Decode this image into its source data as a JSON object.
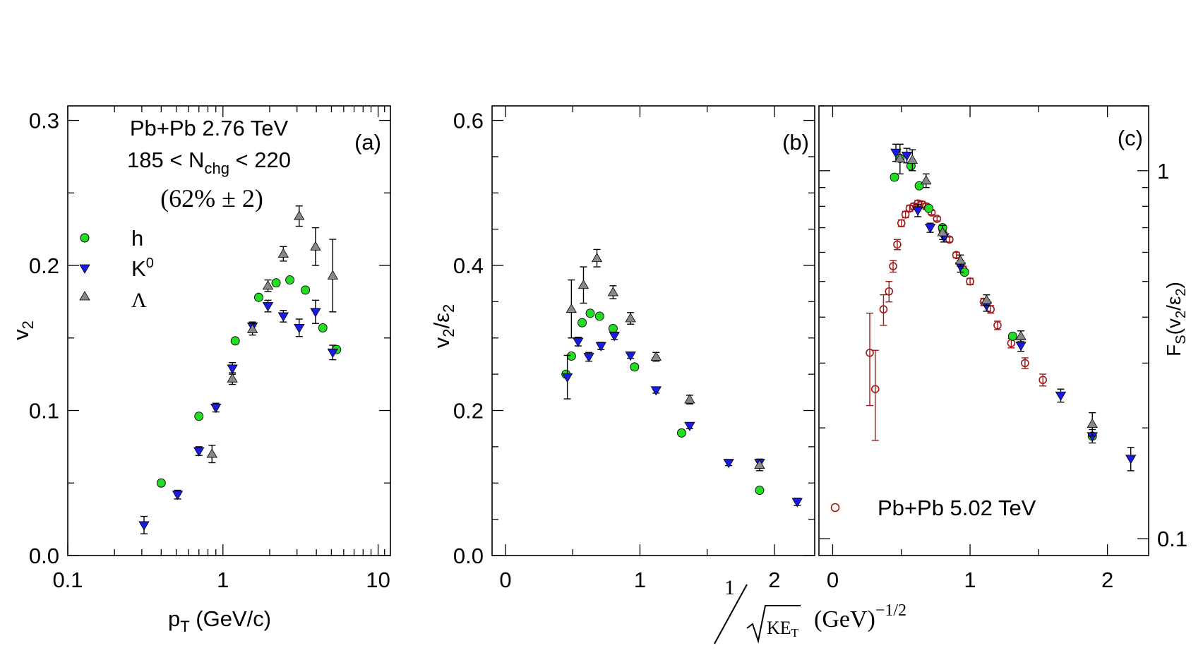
{
  "chart_data": [
    {
      "type": "scatter",
      "panel_tag": "(a)",
      "xscale": "log",
      "xlim": [
        0.1,
        12
      ],
      "ylim": [
        0.0,
        0.31
      ],
      "xticks": [
        "0.1",
        "1",
        "10"
      ],
      "yticks": [
        "0.0",
        "0.1",
        "0.2",
        "0.3"
      ],
      "xlabel": {
        "main": "p",
        "sub": "T",
        "rest": " (GeV/c)"
      },
      "ylabel": {
        "main": "v",
        "sub": "2"
      },
      "annotation": {
        "line1": "Pb+Pb  2.76 TeV",
        "line2_pre": "185 < N",
        "line2_sub": "chg",
        "line2_post": " < 220",
        "line3": "(62% ± 2)"
      },
      "legend": [
        {
          "name": "h",
          "marker": "circle",
          "color": "#22dd22"
        },
        {
          "name": "K",
          "sup": "0",
          "marker": "triangle-down",
          "color": "#1a1ae6"
        },
        {
          "name": "Λ",
          "marker": "triangle-up",
          "color": "#888888"
        }
      ],
      "series": [
        {
          "name": "h",
          "marker": "circle",
          "color": "#22dd22",
          "x": [
            0.4,
            0.7,
            1.2,
            1.7,
            2.2,
            2.7,
            3.4,
            4.4,
            5.4
          ],
          "y": [
            0.05,
            0.096,
            0.148,
            0.178,
            0.188,
            0.19,
            0.183,
            0.157,
            0.142
          ],
          "err": [
            0,
            0,
            0,
            0,
            0,
            0,
            0,
            0,
            0
          ]
        },
        {
          "name": "K0",
          "marker": "triangle-down",
          "color": "#1a1ae6",
          "x": [
            0.31,
            0.51,
            0.7,
            0.9,
            1.15,
            1.55,
            1.95,
            2.45,
            3.1,
            3.95,
            5.1
          ],
          "y": [
            0.021,
            0.042,
            0.072,
            0.102,
            0.129,
            0.158,
            0.172,
            0.165,
            0.157,
            0.168,
            0.14
          ],
          "err": [
            0.006,
            0.003,
            0.003,
            0.003,
            0.004,
            0.003,
            0.004,
            0.004,
            0.006,
            0.008,
            0.005
          ]
        },
        {
          "name": "Lambda",
          "marker": "triangle-up",
          "color": "#888888",
          "x": [
            0.85,
            1.15,
            1.55,
            1.95,
            2.45,
            3.1,
            3.95,
            5.1
          ],
          "y": [
            0.07,
            0.122,
            0.156,
            0.186,
            0.208,
            0.234,
            0.213,
            0.193
          ],
          "err": [
            0.006,
            0.004,
            0.004,
            0.004,
            0.005,
            0.007,
            0.013,
            0.025
          ]
        }
      ]
    },
    {
      "type": "scatter",
      "panel_tag": "(b)",
      "xlim": [
        -0.1,
        2.3
      ],
      "ylim": [
        0.0,
        0.62
      ],
      "xticks": [
        0,
        1,
        2
      ],
      "xtick_labels": [
        "0",
        "1",
        "2"
      ],
      "yticks": [
        "0.0",
        "0.2",
        "0.4",
        "0.6"
      ],
      "ylabel": {
        "main": "v",
        "sub1": "2",
        "sep": "/ε",
        "sub2": "2"
      },
      "series": [
        {
          "name": "h",
          "marker": "circle",
          "color": "#22dd22",
          "x": [
            0.45,
            0.49,
            0.57,
            0.63,
            0.7,
            0.8,
            0.96,
            1.31,
            1.89
          ],
          "y": [
            0.25,
            0.275,
            0.321,
            0.334,
            0.33,
            0.313,
            0.26,
            0.169,
            0.09
          ],
          "err": [
            0,
            0,
            0,
            0,
            0,
            0,
            0,
            0,
            0
          ]
        },
        {
          "name": "K0",
          "marker": "triangle-down",
          "color": "#1a1ae6",
          "x": [
            0.46,
            0.54,
            0.62,
            0.71,
            0.81,
            0.93,
            1.12,
            1.37,
            1.66,
            1.89,
            2.17
          ],
          "y": [
            0.246,
            0.295,
            0.274,
            0.289,
            0.303,
            0.276,
            0.228,
            0.179,
            0.128,
            0.128,
            0.074
          ],
          "err": [
            0.03,
            0.006,
            0.006,
            0.005,
            0.005,
            0.004,
            0.004,
            0.004,
            0.004,
            0.004,
            0.005
          ]
        },
        {
          "name": "Lambda",
          "marker": "triangle-up",
          "color": "#888888",
          "x": [
            0.49,
            0.58,
            0.68,
            0.8,
            0.93,
            1.12,
            1.37,
            1.89
          ],
          "y": [
            0.34,
            0.373,
            0.41,
            0.363,
            0.327,
            0.274,
            0.215,
            0.125
          ],
          "err": [
            0.04,
            0.025,
            0.012,
            0.009,
            0.008,
            0.006,
            0.006,
            0.008
          ]
        }
      ]
    },
    {
      "type": "scatter",
      "panel_tag": "(c)",
      "xlim": [
        -0.1,
        2.3
      ],
      "yscale": "log",
      "ylim": [
        0.09,
        1.5
      ],
      "xticks": [
        0,
        1,
        2
      ],
      "xtick_labels": [
        "0",
        "1",
        "2"
      ],
      "yticks": [
        "0.1",
        "1"
      ],
      "ylabel": {
        "main": "F",
        "sub": "S",
        "rest": "(v",
        "sub2": "2",
        "sep": "/ε",
        "sub3": "2",
        "end": ")"
      },
      "xlabel": {
        "frac_num": "1",
        "frac_den": "KE",
        "frac_den_sub": "T",
        "units": "(GeV)",
        "units_sup": "−1/2"
      },
      "legend": [
        {
          "name": "Pb+Pb  5.02 TeV",
          "marker": "open-circle",
          "color": "#a01818"
        }
      ],
      "series": [
        {
          "name": "Pb+Pb 5.02 TeV",
          "marker": "open-circle",
          "color": "#a01818",
          "x": [
            0.27,
            0.31,
            0.37,
            0.41,
            0.44,
            0.47,
            0.5,
            0.53,
            0.56,
            0.59,
            0.62,
            0.65,
            0.68,
            0.72,
            0.76,
            0.8,
            0.85,
            0.9,
            0.95,
            1.0,
            1.1,
            1.15,
            1.2,
            1.3,
            1.4,
            1.53
          ],
          "y": [
            0.32,
            0.255,
            0.42,
            0.47,
            0.55,
            0.63,
            0.72,
            0.76,
            0.79,
            0.8,
            0.815,
            0.81,
            0.8,
            0.77,
            0.74,
            0.69,
            0.65,
            0.59,
            0.54,
            0.5,
            0.44,
            0.42,
            0.38,
            0.34,
            0.3,
            0.27
          ],
          "err": [
            0.09,
            0.07,
            0.04,
            0.03,
            0.02,
            0.02,
            0.015,
            0.015,
            0.015,
            0.015,
            0.015,
            0.015,
            0.015,
            0.01,
            0.01,
            0.01,
            0.01,
            0.01,
            0.01,
            0.01,
            0.01,
            0.01,
            0.01,
            0.01,
            0.01,
            0.01
          ]
        },
        {
          "name": "h",
          "marker": "circle",
          "color": "#22dd22",
          "x": [
            0.45,
            0.49,
            0.57,
            0.63,
            0.7,
            0.8,
            0.96,
            1.31,
            1.89
          ],
          "y": [
            0.96,
            1.08,
            1.03,
            0.91,
            0.79,
            0.7,
            0.53,
            0.355,
            0.19
          ],
          "err": [
            0,
            0,
            0,
            0,
            0,
            0,
            0,
            0,
            0
          ]
        },
        {
          "name": "K0",
          "marker": "triangle-down",
          "color": "#1a1ae6",
          "x": [
            0.46,
            0.54,
            0.62,
            0.71,
            0.81,
            0.93,
            1.12,
            1.37,
            1.66,
            1.89,
            2.17
          ],
          "y": [
            1.12,
            1.1,
            0.78,
            0.7,
            0.66,
            0.55,
            0.43,
            0.335,
            0.245,
            0.19,
            0.165
          ],
          "err": [
            0.06,
            0.05,
            0.03,
            0.02,
            0.02,
            0.02,
            0.015,
            0.012,
            0.01,
            0.008,
            0.012
          ]
        },
        {
          "name": "Lambda",
          "marker": "triangle-up",
          "color": "#888888",
          "x": [
            0.49,
            0.58,
            0.68,
            0.8,
            0.93,
            1.12,
            1.37,
            1.89
          ],
          "y": [
            1.08,
            1.07,
            0.94,
            0.68,
            0.57,
            0.445,
            0.355,
            0.205
          ],
          "err": [
            0.1,
            0.07,
            0.04,
            0.03,
            0.02,
            0.015,
            0.012,
            0.015
          ]
        }
      ]
    }
  ]
}
